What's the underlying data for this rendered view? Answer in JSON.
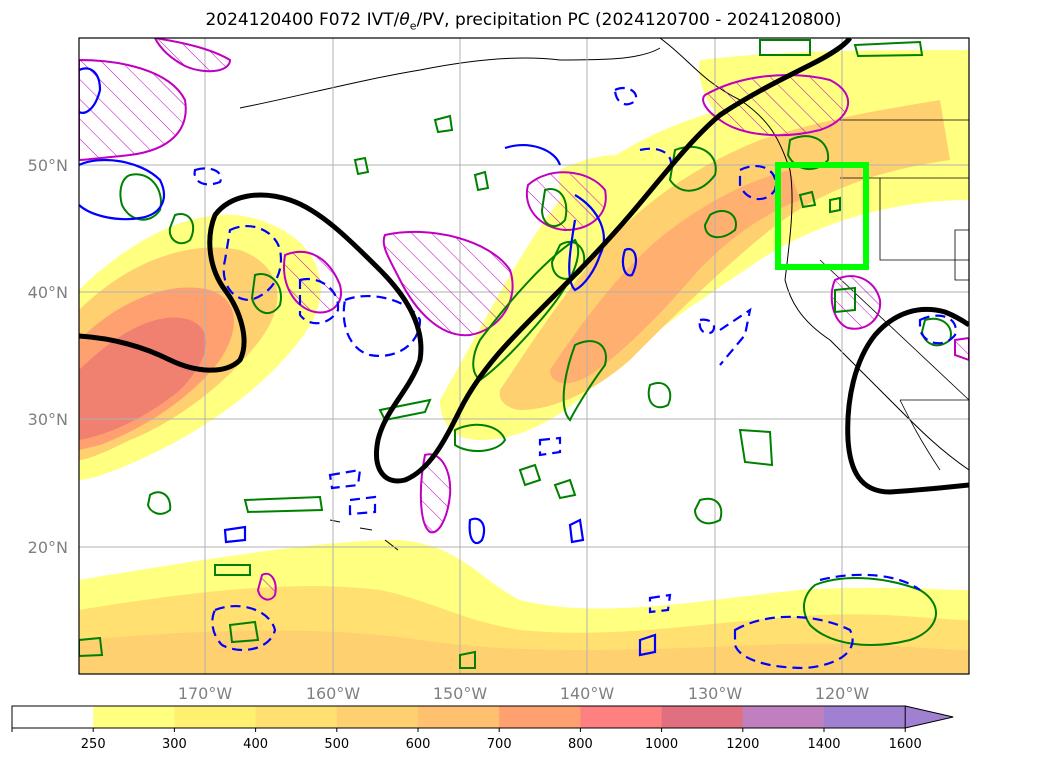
{
  "title": {
    "prefix": "2024120400 F072 IVT/",
    "theta": "θ",
    "theta_sub": "e",
    "suffix": "/PV, precipitation PC (2024120700 - 2024120800)"
  },
  "map": {
    "lat_labels": [
      "50°N",
      "40°N",
      "30°N",
      "20°N"
    ],
    "lon_labels": [
      "170°W",
      "160°W",
      "150°W",
      "140°W",
      "130°W",
      "120°W"
    ],
    "colors": {
      "ivt_yellow": "#ffff80",
      "ivt_orange": "#ffb070",
      "ivt_red": "#f07070",
      "pv_contour": "#000000",
      "theta_pos": "#008000",
      "theta_neg": "#0000ff",
      "precip_pc": "#c000c0",
      "target_box": "#00ff00"
    }
  },
  "colorbar": {
    "levels": [
      "250",
      "300",
      "400",
      "500",
      "600",
      "700",
      "800",
      "1000",
      "1200",
      "1400",
      "1600"
    ],
    "colors": [
      "#ffffff",
      "#ffff80",
      "#fff070",
      "#ffe070",
      "#ffd070",
      "#ffc070",
      "#ffa070",
      "#ff8080",
      "#e07080",
      "#c080c0",
      "#a080d0"
    ]
  }
}
